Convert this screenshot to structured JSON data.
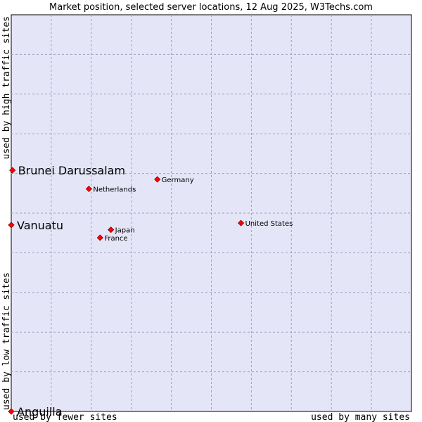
{
  "colors": {
    "plot_background": "#e5e5f8",
    "plot_border": "#000000",
    "grid": "#a0a0c0",
    "marker_fill": "#ff0000",
    "marker_stroke": "#880000"
  },
  "chart_data": {
    "type": "scatter",
    "title": "Market position, selected server locations, 12 Aug 2025, W3Techs.com",
    "xlabel_left": "used by fewer sites",
    "xlabel_right": "used by many sites",
    "ylabel_bottom": "used by low traffic sites",
    "ylabel_top": "used by high traffic sites",
    "xlim": [
      0,
      100
    ],
    "ylim": [
      0,
      100
    ],
    "grid": true,
    "points": [
      {
        "name": "Brunei Darussalam",
        "x": 0.3,
        "y": 60.8,
        "label_size": "large"
      },
      {
        "name": "Germany",
        "x": 36.5,
        "y": 58.5,
        "label_size": "small"
      },
      {
        "name": "Netherlands",
        "x": 19.4,
        "y": 56.1,
        "label_size": "small"
      },
      {
        "name": "United States",
        "x": 57.4,
        "y": 47.5,
        "label_size": "small"
      },
      {
        "name": "Vanuatu",
        "x": 0.0,
        "y": 47.0,
        "label_size": "large"
      },
      {
        "name": "Japan",
        "x": 24.9,
        "y": 45.8,
        "label_size": "small"
      },
      {
        "name": "France",
        "x": 22.2,
        "y": 43.8,
        "label_size": "small"
      },
      {
        "name": "Anguilla",
        "x": 0.0,
        "y": 0.0,
        "label_size": "large"
      }
    ]
  }
}
